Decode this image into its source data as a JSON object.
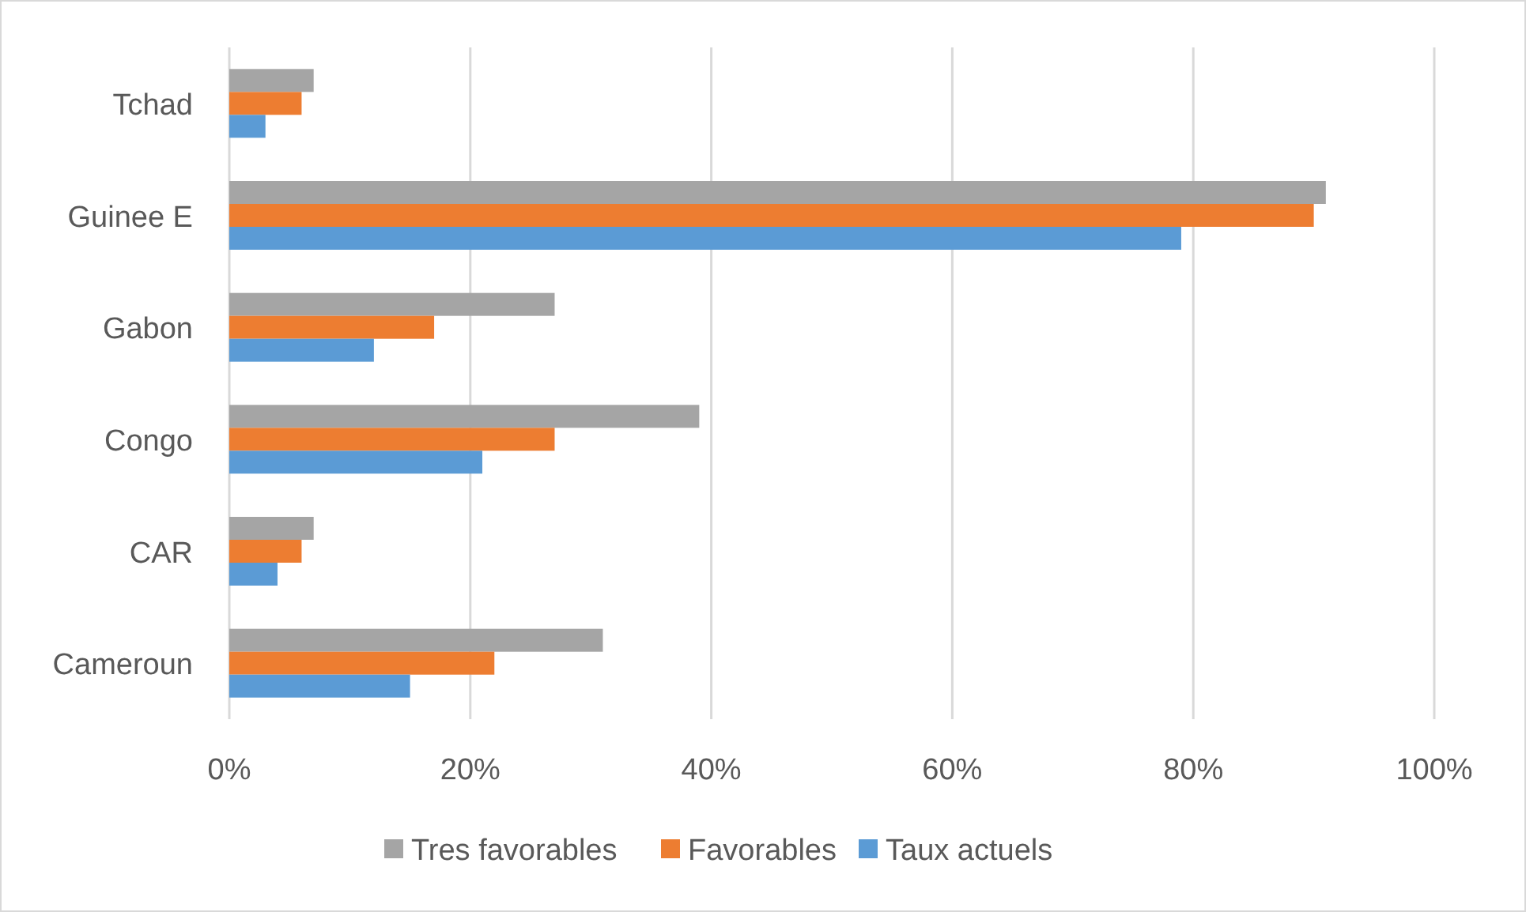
{
  "chart_data": {
    "type": "bar",
    "orientation": "horizontal",
    "categories": [
      "Tchad",
      "Guinee E",
      "Gabon",
      "Congo",
      "CAR",
      "Cameroun"
    ],
    "series": [
      {
        "name": "Tres favorables",
        "color": "#a5a5a5",
        "values": [
          7,
          91,
          27,
          39,
          7,
          31
        ]
      },
      {
        "name": "Favorables",
        "color": "#ed7d31",
        "values": [
          6,
          90,
          17,
          27,
          6,
          22
        ]
      },
      {
        "name": "Taux actuels",
        "color": "#5b9bd5",
        "values": [
          3,
          79,
          12,
          21,
          4,
          15
        ]
      }
    ],
    "xlim": [
      0,
      100
    ],
    "xticks": [
      {
        "value": 0,
        "label": "0%"
      },
      {
        "value": 20,
        "label": "20%"
      },
      {
        "value": 40,
        "label": "40%"
      },
      {
        "value": 60,
        "label": "60%"
      },
      {
        "value": 80,
        "label": "80%"
      },
      {
        "value": 100,
        "label": "100%"
      }
    ],
    "grid": "x",
    "legend": "bottom"
  }
}
